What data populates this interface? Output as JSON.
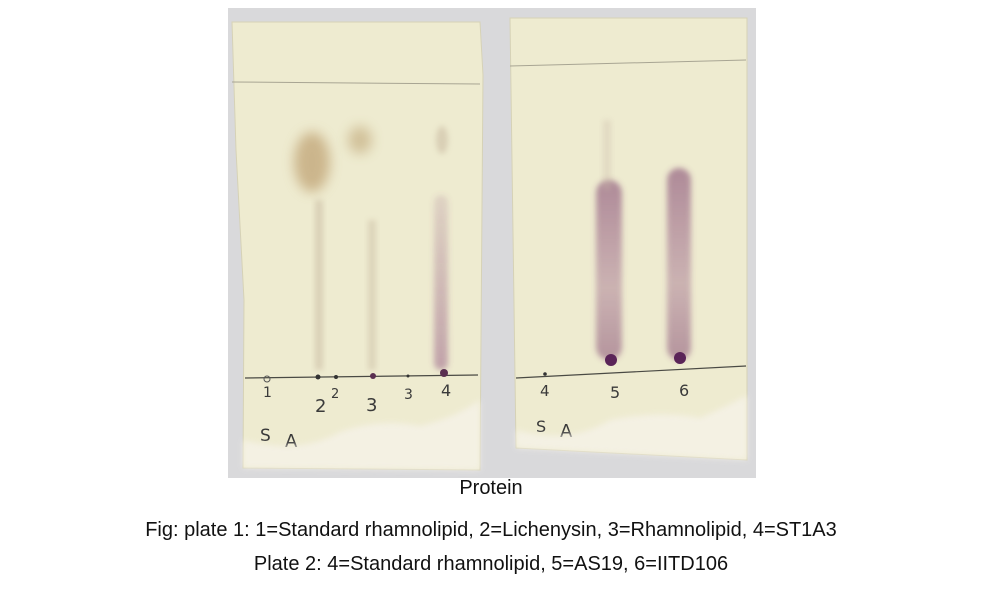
{
  "photo": {
    "plate1": {
      "lane_labels": [
        "1",
        "2",
        "2",
        "3",
        "3",
        "4"
      ],
      "corner_marks": [
        "S",
        "A"
      ]
    },
    "plate2": {
      "lane_labels": [
        "4",
        "5",
        "6"
      ],
      "corner_marks": [
        "S",
        "A"
      ]
    }
  },
  "caption": {
    "title": "Protein",
    "line1": "Fig: plate 1: 1=Standard rhamnolipid, 2=Lichenysin, 3=Rhamnolipid, 4=ST1A3",
    "line2": "Plate 2: 4=Standard rhamnolipid, 5=AS19, 6=IITD106"
  },
  "colors": {
    "plate_background": "#eeebd0",
    "backdrop": "#dcdcdc",
    "stain_purple": "#7a3a6a",
    "stain_brown": "#a88850"
  }
}
